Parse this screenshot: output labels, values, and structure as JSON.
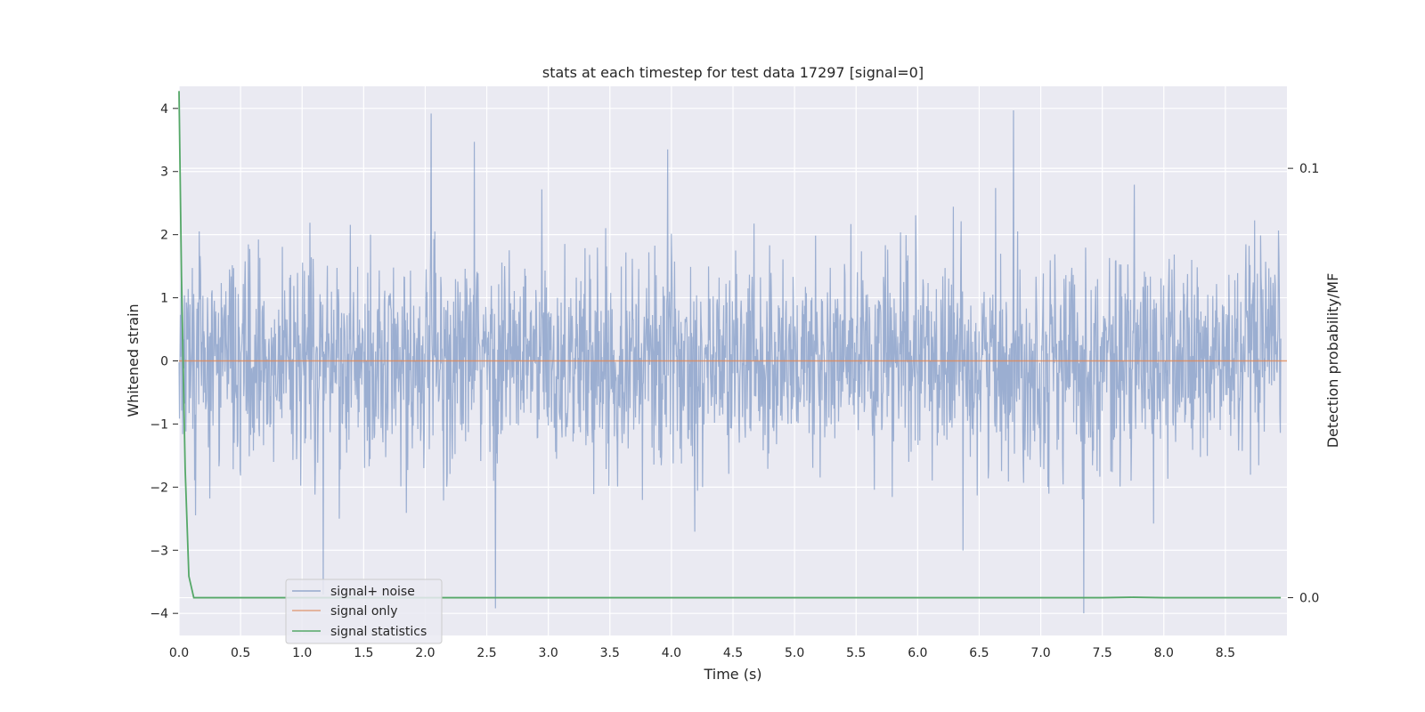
{
  "chart_data": {
    "type": "line",
    "title": "stats at each timestep for test data 17297 [signal=0]",
    "xlabel": "Time (s)",
    "ylabel": "Whitened strain",
    "y2label": "Detection probability/MF",
    "xlim": [
      0.0,
      9.0
    ],
    "ylim": [
      -4.35,
      4.35
    ],
    "y2lim": [
      -0.0088,
      0.1191
    ],
    "x_ticks": [
      "0.0",
      "0.5",
      "1.0",
      "1.5",
      "2.0",
      "2.5",
      "3.0",
      "3.5",
      "4.0",
      "4.5",
      "5.0",
      "5.5",
      "6.0",
      "6.5",
      "7.0",
      "7.5",
      "8.0",
      "8.5"
    ],
    "y_ticks": [
      "4",
      "3",
      "2",
      "1",
      "0",
      "−1",
      "−2",
      "−3",
      "−4"
    ],
    "y2_ticks": [
      "0.1",
      "0.0"
    ],
    "grid": true,
    "legend_position": "lower-left",
    "colors": {
      "noise": "#4c72b0",
      "signal": "#dd8452",
      "stats": "#55a868",
      "plot_bg": "#eaeaf2",
      "grid": "#ffffff"
    },
    "series": [
      {
        "name": "signal+ noise",
        "axis": "left",
        "description_values": "whitened strain noise, approximately Gaussian, std ~0.8, range about -4 to 4",
        "n_points": 2400,
        "notable_peaks": [
          {
            "x": 2.05,
            "y": 3.92
          },
          {
            "x": 6.78,
            "y": 3.97
          },
          {
            "x": 3.97,
            "y": 3.35
          },
          {
            "x": 2.4,
            "y": 3.47
          },
          {
            "x": 7.35,
            "y": -4.0
          },
          {
            "x": 2.57,
            "y": -3.92
          },
          {
            "x": 1.17,
            "y": -3.7
          }
        ]
      },
      {
        "name": "signal only",
        "axis": "left",
        "x": [
          0.0,
          9.0
        ],
        "y": [
          0.0,
          0.0
        ]
      },
      {
        "name": "signal statistics",
        "axis": "right",
        "x": [
          0.0,
          0.02,
          0.05,
          0.08,
          0.12,
          0.5,
          1.0,
          2.0,
          3.0,
          4.0,
          5.0,
          6.0,
          7.0,
          7.5,
          7.75,
          8.0,
          8.5,
          8.95
        ],
        "y": [
          0.118,
          0.075,
          0.03,
          0.005,
          0.0,
          0.0,
          0.0,
          0.0,
          0.0,
          0.0,
          0.0,
          0.0,
          0.0,
          0.0,
          0.0001,
          0.0,
          0.0,
          0.0
        ]
      }
    ]
  }
}
